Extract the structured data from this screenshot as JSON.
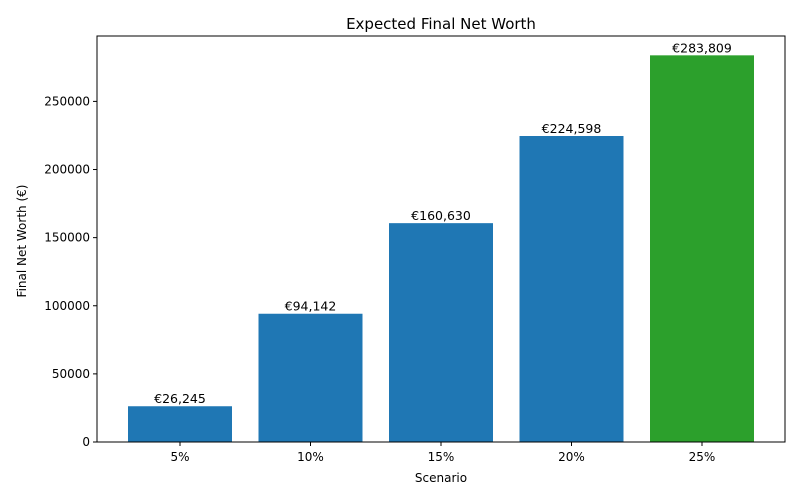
{
  "chart_data": {
    "type": "bar",
    "title": "Expected Final Net Worth",
    "xlabel": "Scenario",
    "ylabel": "Final Net Worth (€)",
    "categories": [
      "5%",
      "10%",
      "15%",
      "20%",
      "25%"
    ],
    "values": [
      26245,
      94142,
      160630,
      224598,
      283809
    ],
    "data_labels": [
      "€26,245",
      "€94,142",
      "€160,630",
      "€224,598",
      "€283,809"
    ],
    "bar_colors": [
      "#1f77b4",
      "#1f77b4",
      "#1f77b4",
      "#1f77b4",
      "#2ca02c"
    ],
    "ylim": [
      0,
      298000
    ],
    "yticks": [
      0,
      50000,
      100000,
      150000,
      200000,
      250000
    ],
    "ytick_labels": [
      "0",
      "50000",
      "100000",
      "150000",
      "200000",
      "250000"
    ],
    "grid": false,
    "legend": null
  }
}
